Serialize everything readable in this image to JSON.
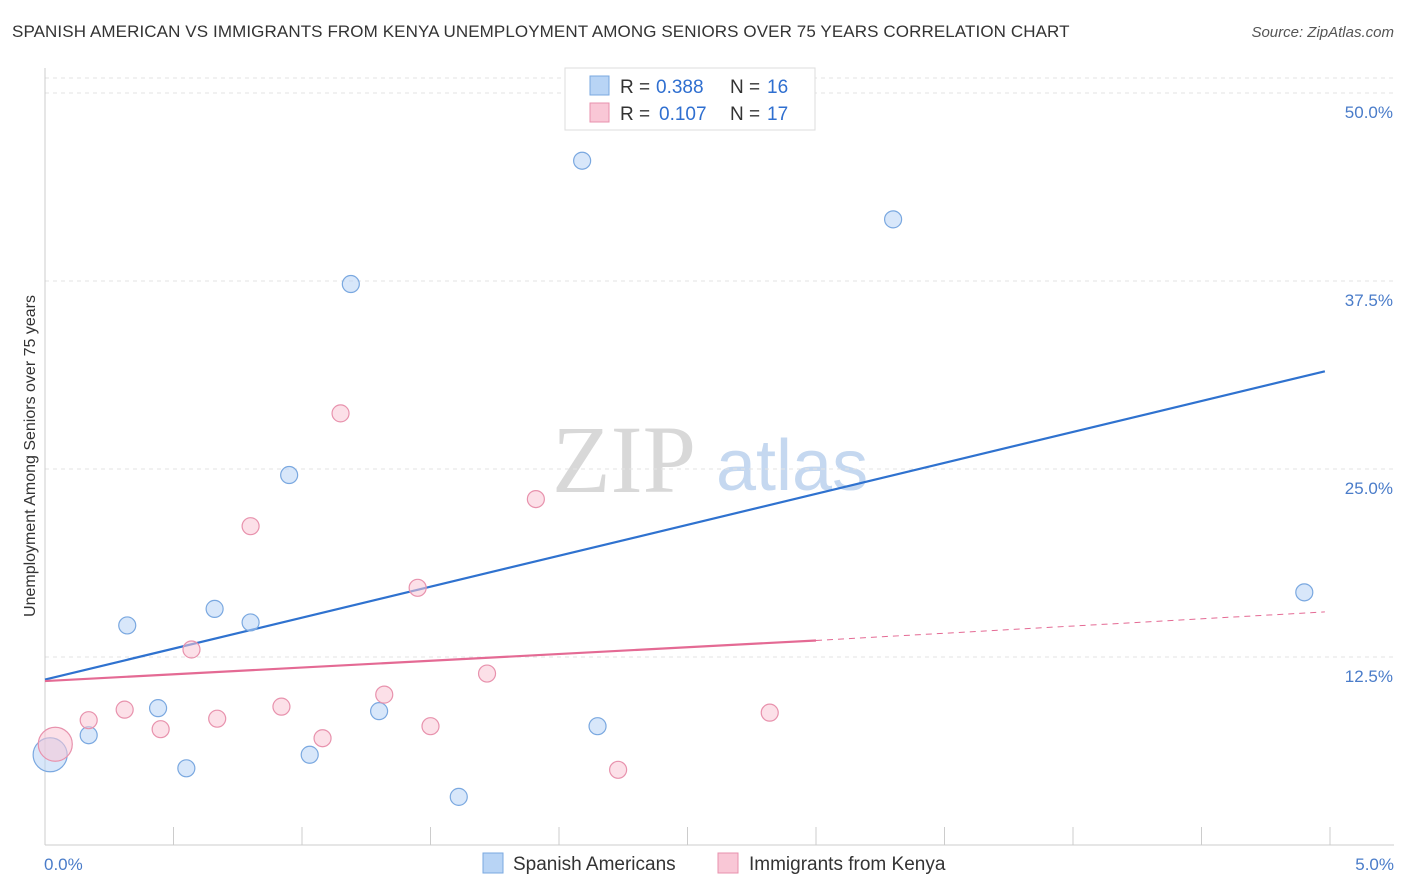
{
  "header": {
    "title": "SPANISH AMERICAN VS IMMIGRANTS FROM KENYA UNEMPLOYMENT AMONG SENIORS OVER 75 YEARS CORRELATION CHART",
    "source": "Source: ZipAtlas.com"
  },
  "watermark": {
    "zip": "ZIP",
    "atlas": "atlas"
  },
  "legend": {
    "r_label": "R = ",
    "n_label": "N = ",
    "series": [
      {
        "r": "0.388",
        "n": "16"
      },
      {
        "r": "0.107",
        "n": "17"
      }
    ]
  },
  "colors": {
    "blue_fill": "#b8d4f5",
    "blue_stroke": "#7aa8e0",
    "blue_line": "#2f72cf",
    "pink_fill": "#f9c7d6",
    "pink_stroke": "#e892ad",
    "pink_line": "#e46a94"
  },
  "chart_data": {
    "type": "scatter",
    "title": "SPANISH AMERICAN VS IMMIGRANTS FROM KENYA UNEMPLOYMENT AMONG SENIORS OVER 75 YEARS CORRELATION CHART",
    "xlabel": "",
    "ylabel": "Unemployment Among Seniors over 75 years",
    "xlim": [
      0,
      5
    ],
    "ylim": [
      0,
      51
    ],
    "x_tick_labels": [
      "0.0%",
      "5.0%"
    ],
    "y_ticks": [
      12.5,
      25.0,
      37.5,
      50.0
    ],
    "y_tick_labels": [
      "12.5%",
      "25.0%",
      "37.5%",
      "50.0%"
    ],
    "series": [
      {
        "name": "Spanish Americans",
        "color": "#b8d4f5",
        "points": [
          {
            "x": 0.02,
            "y": 6.0,
            "big": true
          },
          {
            "x": 0.17,
            "y": 7.3
          },
          {
            "x": 0.32,
            "y": 14.6
          },
          {
            "x": 0.44,
            "y": 9.1
          },
          {
            "x": 0.55,
            "y": 5.1
          },
          {
            "x": 0.66,
            "y": 15.7
          },
          {
            "x": 0.8,
            "y": 14.8
          },
          {
            "x": 0.95,
            "y": 24.6
          },
          {
            "x": 1.03,
            "y": 6.0
          },
          {
            "x": 1.19,
            "y": 37.3
          },
          {
            "x": 1.3,
            "y": 8.9
          },
          {
            "x": 1.61,
            "y": 3.2
          },
          {
            "x": 2.09,
            "y": 45.5
          },
          {
            "x": 2.15,
            "y": 7.9
          },
          {
            "x": 3.3,
            "y": 41.6
          },
          {
            "x": 4.9,
            "y": 16.8
          }
        ],
        "trend": {
          "x0": 0.0,
          "y0": 11.0,
          "x1": 4.98,
          "y1": 31.5
        }
      },
      {
        "name": "Immigrants from Kenya",
        "color": "#f9c7d6",
        "points": [
          {
            "x": 0.04,
            "y": 6.7,
            "big": true
          },
          {
            "x": 0.17,
            "y": 8.3
          },
          {
            "x": 0.31,
            "y": 9.0
          },
          {
            "x": 0.45,
            "y": 7.7
          },
          {
            "x": 0.57,
            "y": 13.0
          },
          {
            "x": 0.67,
            "y": 8.4
          },
          {
            "x": 0.8,
            "y": 21.2
          },
          {
            "x": 0.92,
            "y": 9.2
          },
          {
            "x": 1.08,
            "y": 7.1
          },
          {
            "x": 1.15,
            "y": 28.7
          },
          {
            "x": 1.32,
            "y": 10.0
          },
          {
            "x": 1.45,
            "y": 17.1
          },
          {
            "x": 1.5,
            "y": 7.9
          },
          {
            "x": 1.72,
            "y": 11.4
          },
          {
            "x": 1.91,
            "y": 23.0
          },
          {
            "x": 2.23,
            "y": 5.0
          },
          {
            "x": 2.82,
            "y": 8.8
          }
        ],
        "trend": {
          "x0": 0.0,
          "y0": 10.9,
          "x1": 3.0,
          "y1": 13.6,
          "dash_x1": 4.98,
          "dash_y1": 15.5
        }
      }
    ]
  },
  "bottom_legend": [
    {
      "label": "Spanish Americans"
    },
    {
      "label": "Immigrants from Kenya"
    }
  ]
}
